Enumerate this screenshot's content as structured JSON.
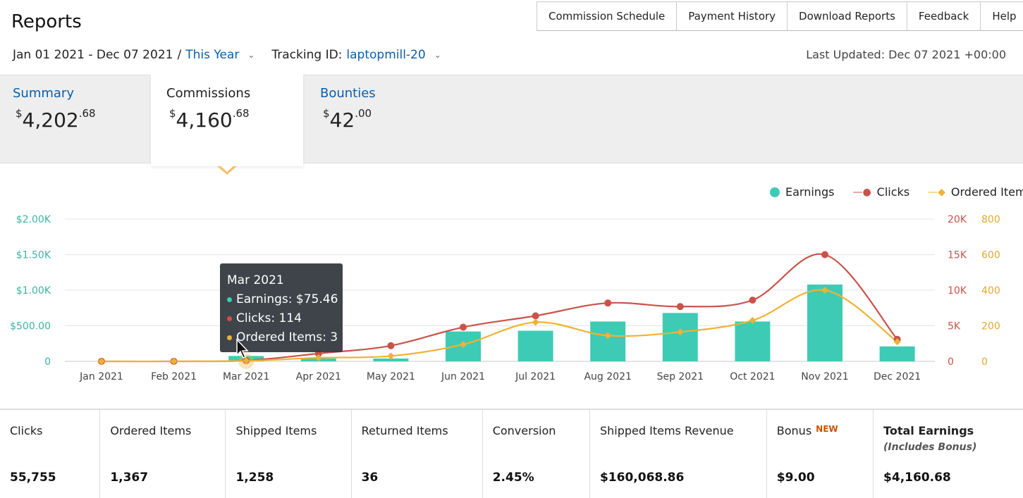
{
  "header": {
    "title": "Reports",
    "nav": [
      "Commission Schedule",
      "Payment History",
      "Download Reports",
      "Feedback",
      "Help"
    ],
    "date_range": "Jan 01 2021 - Dec 07 2021",
    "date_sep": "/",
    "period": "This Year",
    "tracking_label": "Tracking ID:",
    "tracking_id": "laptopmill-20",
    "last_updated": "Last Updated: Dec 07 2021 +00:00"
  },
  "tabs": [
    {
      "label": "Summary",
      "dollar": "$",
      "whole": "4,202",
      "cents": ".68"
    },
    {
      "label": "Commissions",
      "dollar": "$",
      "whole": "4,160",
      "cents": ".68"
    },
    {
      "label": "Bounties",
      "dollar": "$",
      "whole": "42",
      "cents": ".00"
    }
  ],
  "legend": {
    "earnings": "Earnings",
    "clicks": "Clicks",
    "ordered": "Ordered Items"
  },
  "colors": {
    "earnings": "#3ecbb5",
    "clicks": "#c9534a",
    "ordered": "#efb233",
    "link": "#0b5ea8"
  },
  "chart_data": {
    "type": "bar",
    "categories": [
      "Jan 2021",
      "Feb 2021",
      "Mar 2021",
      "Apr 2021",
      "May 2021",
      "Jun 2021",
      "Jul 2021",
      "Aug 2021",
      "Sep 2021",
      "Oct 2021",
      "Nov 2021",
      "Dec 2021"
    ],
    "series": [
      {
        "name": "Earnings",
        "axis": "left",
        "values": [
          0,
          0,
          75.46,
          40,
          40,
          420,
          430,
          560,
          680,
          560,
          1080,
          210
        ]
      },
      {
        "name": "Clicks",
        "axis": "right1",
        "values": [
          0,
          0,
          114,
          1100,
          2200,
          4800,
          6400,
          8200,
          7700,
          8600,
          15000,
          3100
        ]
      },
      {
        "name": "Ordered Items",
        "axis": "right2",
        "values": [
          0,
          0,
          3,
          20,
          30,
          95,
          220,
          145,
          165,
          230,
          400,
          110
        ]
      }
    ],
    "left_axis": {
      "range": [
        0,
        2000
      ],
      "ticks": [
        "0",
        "$500.00",
        "$1.00K",
        "$1.50K",
        "$2.00K"
      ]
    },
    "right1_axis": {
      "range": [
        0,
        20000
      ],
      "ticks": [
        "0",
        "5K",
        "10K",
        "15K",
        "20K"
      ]
    },
    "right2_axis": {
      "range": [
        0,
        800
      ],
      "ticks": [
        "0",
        "200",
        "400",
        "600",
        "800"
      ]
    },
    "grid": true,
    "legend_position": "top-right"
  },
  "tooltip": {
    "title": "Mar 2021",
    "earnings": "Earnings: $75.46",
    "clicks": "Clicks: 114",
    "ordered": "Ordered Items: 3"
  },
  "stats": [
    {
      "label": "Clicks",
      "value": "55,755"
    },
    {
      "label": "Ordered Items",
      "value": "1,367"
    },
    {
      "label": "Shipped Items",
      "value": "1,258"
    },
    {
      "label": "Returned Items",
      "value": "36"
    },
    {
      "label": "Conversion",
      "value": "2.45%"
    },
    {
      "label": "Shipped Items Revenue",
      "value": "$160,068.86"
    },
    {
      "label": "Bonus",
      "badge": "NEW",
      "value": "$9.00"
    },
    {
      "label": "Total Earnings",
      "sub": "(Includes Bonus)",
      "value": "$4,160.68"
    }
  ]
}
